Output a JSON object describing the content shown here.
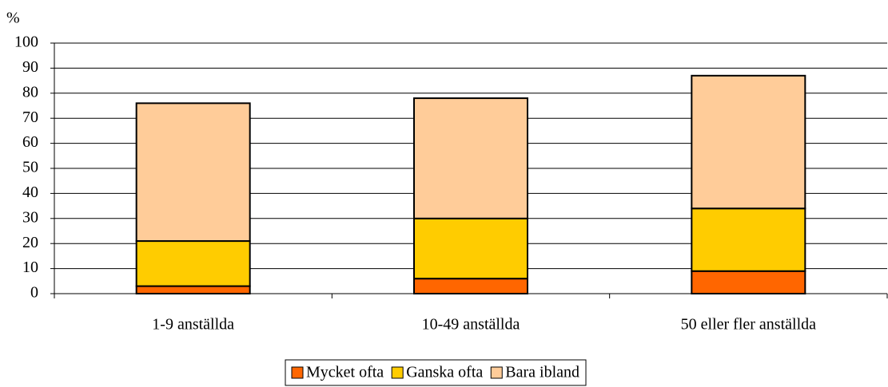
{
  "chart_data": {
    "type": "stacked_bar",
    "y_label": "%",
    "categories": [
      "1-9 anställda",
      "10-49 anställda",
      "50 eller fler anställda"
    ],
    "series": [
      {
        "name": "Mycket ofta",
        "color": "#ff6600",
        "values": [
          3,
          6,
          9
        ]
      },
      {
        "name": "Ganska ofta",
        "color": "#ffcc00",
        "values": [
          18,
          24,
          25
        ]
      },
      {
        "name": "Bara ibland",
        "color": "#ffcc99",
        "values": [
          55,
          48,
          53
        ]
      }
    ],
    "ylim": [
      0,
      100
    ],
    "yticks": [
      0,
      10,
      20,
      30,
      40,
      50,
      60,
      70,
      80,
      90,
      100
    ],
    "grid": true,
    "legend": "bottom"
  }
}
